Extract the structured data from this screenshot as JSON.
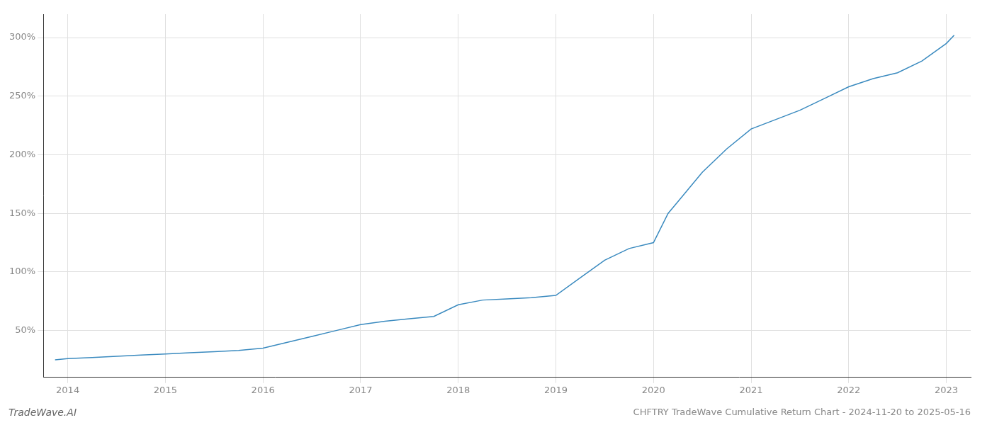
{
  "chart_data": {
    "type": "line",
    "title": "CHFTRY TradeWave Cumulative Return Chart - 2024-11-20 to 2025-05-16",
    "annotations": [
      "TradeWave.AI"
    ],
    "x": [
      2013.87,
      2014.0,
      2014.25,
      2014.5,
      2014.75,
      2015.0,
      2015.25,
      2015.5,
      2015.75,
      2016.0,
      2016.25,
      2016.5,
      2016.75,
      2017.0,
      2017.25,
      2017.5,
      2017.75,
      2018.0,
      2018.25,
      2018.5,
      2018.75,
      2019.0,
      2019.25,
      2019.5,
      2019.75,
      2020.0,
      2020.15,
      2020.25,
      2020.5,
      2020.75,
      2021.0,
      2021.25,
      2021.5,
      2021.75,
      2022.0,
      2022.25,
      2022.5,
      2022.75,
      2023.0,
      2023.08
    ],
    "values": [
      25,
      26,
      27,
      28,
      29,
      30,
      31,
      32,
      33,
      35,
      40,
      45,
      50,
      55,
      58,
      60,
      62,
      72,
      76,
      77,
      78,
      80,
      95,
      110,
      120,
      125,
      150,
      160,
      185,
      205,
      222,
      230,
      238,
      248,
      258,
      265,
      270,
      280,
      295,
      302
    ],
    "color": "#3a8abf",
    "xlim": [
      2013.75,
      2023.25
    ],
    "xticks": [
      2014,
      2015,
      2016,
      2017,
      2018,
      2019,
      2020,
      2021,
      2022,
      2023
    ],
    "ylim": [
      10,
      320
    ],
    "yticks": [
      {
        "value": 50,
        "label": "50%"
      },
      {
        "value": 100,
        "label": "100%"
      },
      {
        "value": 150,
        "label": "150%"
      },
      {
        "value": 200,
        "label": "200%"
      },
      {
        "value": 250,
        "label": "250%"
      },
      {
        "value": 300,
        "label": "300%"
      }
    ],
    "grid": true
  }
}
